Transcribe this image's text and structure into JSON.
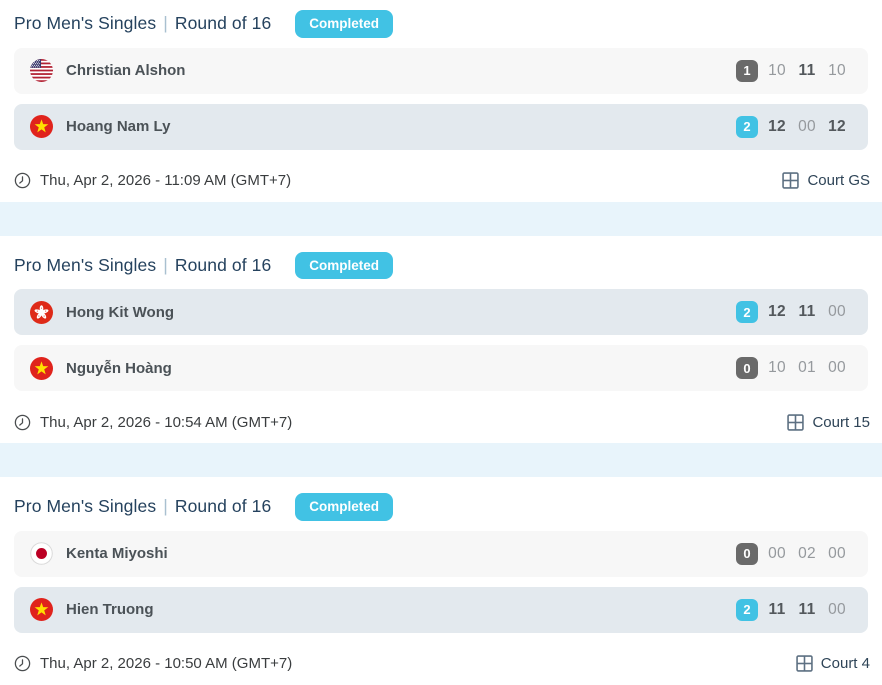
{
  "colors": {
    "accent": "#41c2e4",
    "separator_band": "#e8f4fb",
    "winner_row_bg": "#e3e9ee",
    "loser_row_bg": "#f7f7f7",
    "loser_badge_bg": "#6a6a6a",
    "title_color": "#25425e"
  },
  "matches": [
    {
      "category": "Pro Men's Singles",
      "separator": "|",
      "round": "Round of 16",
      "status": "Completed",
      "players": [
        {
          "name": "Christian Alshon",
          "flag": "usa-flag",
          "set_count": "1",
          "is_winner": false,
          "games": [
            {
              "score": "10",
              "won": false
            },
            {
              "score": "11",
              "won": true
            },
            {
              "score": "10",
              "won": false
            }
          ]
        },
        {
          "name": "Hoang Nam Ly",
          "flag": "vietnam-flag",
          "set_count": "2",
          "is_winner": true,
          "games": [
            {
              "score": "12",
              "won": true
            },
            {
              "score": "00",
              "won": false
            },
            {
              "score": "12",
              "won": true
            }
          ]
        }
      ],
      "datetime": "Thu, Apr 2, 2026 - 11:09 AM (GMT+7)",
      "court": "Court GS"
    },
    {
      "category": "Pro Men's Singles",
      "separator": "|",
      "round": "Round of 16",
      "status": "Completed",
      "players": [
        {
          "name": "Hong Kit Wong",
          "flag": "hongkong-flag",
          "set_count": "2",
          "is_winner": true,
          "games": [
            {
              "score": "12",
              "won": true
            },
            {
              "score": "11",
              "won": true
            },
            {
              "score": "00",
              "won": false
            }
          ]
        },
        {
          "name": "Nguyễn Hoàng",
          "flag": "vietnam-flag",
          "set_count": "0",
          "is_winner": false,
          "games": [
            {
              "score": "10",
              "won": false
            },
            {
              "score": "01",
              "won": false
            },
            {
              "score": "00",
              "won": false
            }
          ]
        }
      ],
      "datetime": "Thu, Apr 2, 2026 - 10:54 AM (GMT+7)",
      "court": "Court 15"
    },
    {
      "category": "Pro Men's Singles",
      "separator": "|",
      "round": "Round of 16",
      "status": "Completed",
      "players": [
        {
          "name": "Kenta Miyoshi",
          "flag": "japan-flag",
          "set_count": "0",
          "is_winner": false,
          "games": [
            {
              "score": "00",
              "won": false
            },
            {
              "score": "02",
              "won": false
            },
            {
              "score": "00",
              "won": false
            }
          ]
        },
        {
          "name": "Hien Truong",
          "flag": "vietnam-flag",
          "set_count": "2",
          "is_winner": true,
          "games": [
            {
              "score": "11",
              "won": true
            },
            {
              "score": "11",
              "won": true
            },
            {
              "score": "00",
              "won": false
            }
          ]
        }
      ],
      "datetime": "Thu, Apr 2, 2026 - 10:50 AM (GMT+7)",
      "court": "Court 4"
    }
  ]
}
